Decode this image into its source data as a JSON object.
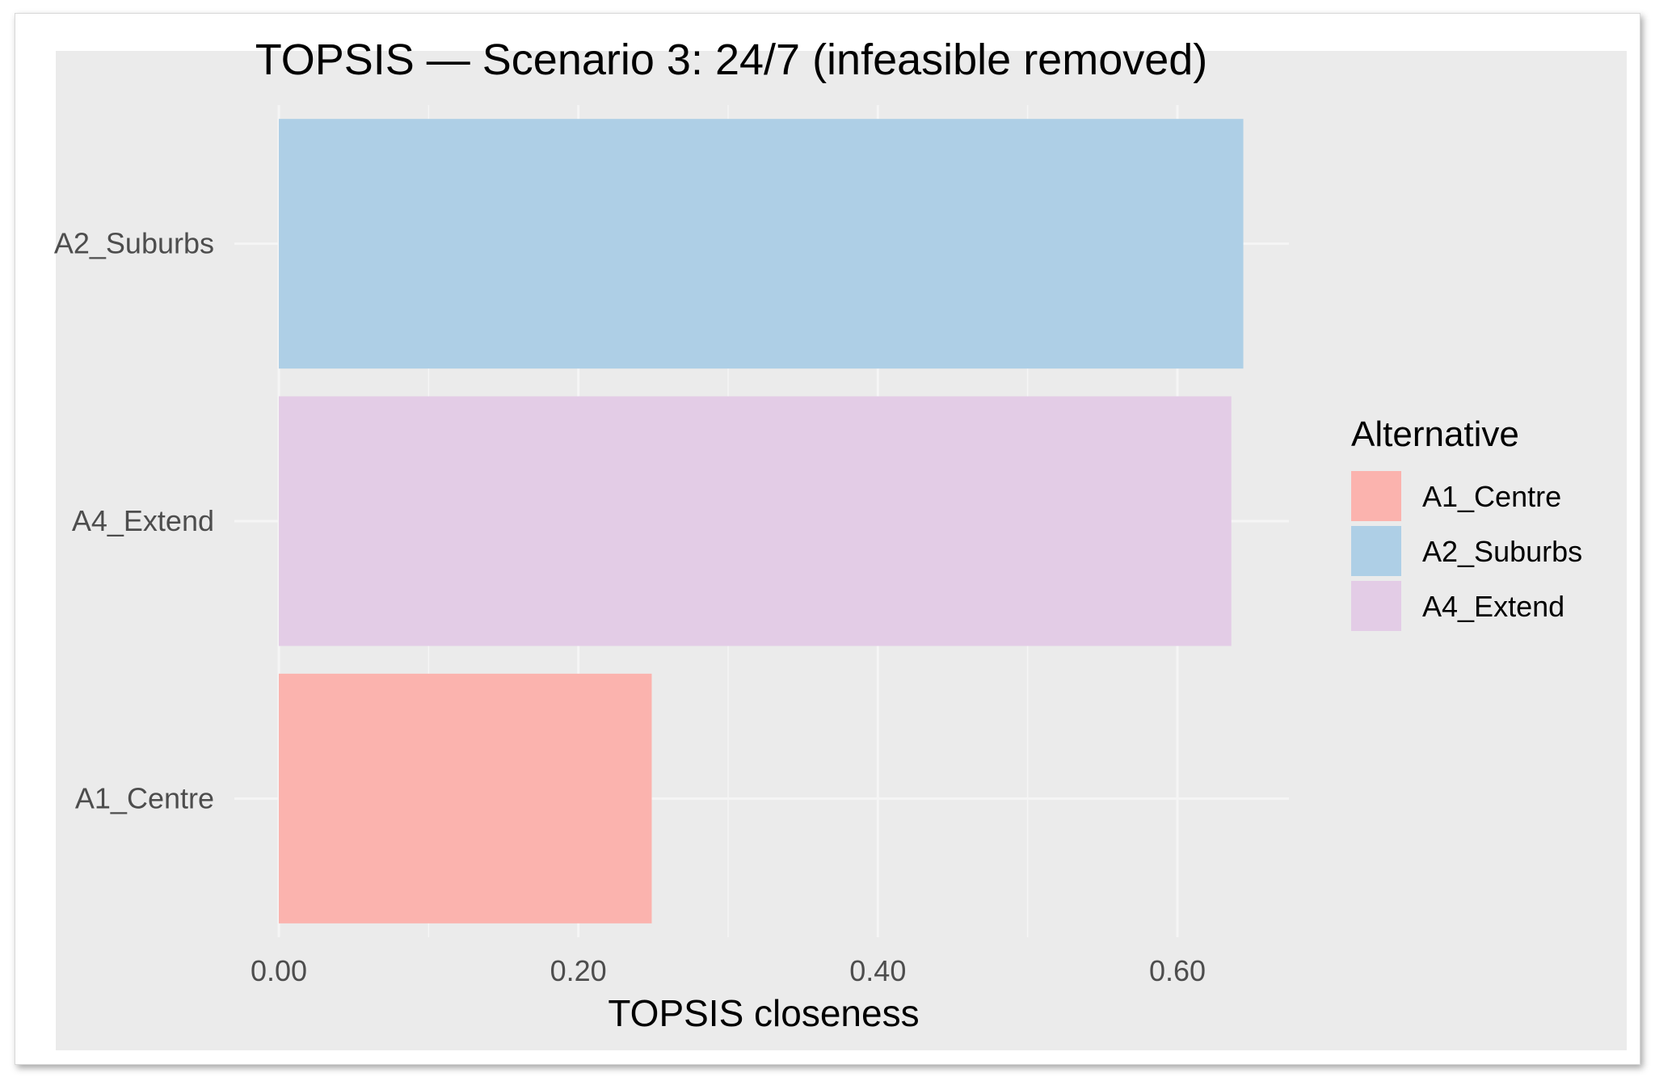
{
  "chart_data": {
    "type": "bar",
    "orientation": "horizontal",
    "title": "TOPSIS — Scenario 3: 24/7 (infeasible removed)",
    "xlabel": "TOPSIS closeness",
    "ylabel": "",
    "xlim": [
      0,
      0.675
    ],
    "x_ticks": [
      "0.00",
      "0.20",
      "0.40",
      "0.60"
    ],
    "x_tick_values": [
      0,
      0.2,
      0.4,
      0.6
    ],
    "categories": [
      "A2_Suburbs",
      "A4_Extend",
      "A1_Centre"
    ],
    "values": [
      0.644,
      0.636,
      0.249
    ],
    "colors": [
      "#aecfe6",
      "#e3cce6",
      "#fbb3ae"
    ],
    "grid": true,
    "legend": {
      "title": "Alternative",
      "position": "right",
      "items": [
        {
          "label": "A1_Centre",
          "color": "#fbb3ae"
        },
        {
          "label": "A2_Suburbs",
          "color": "#aecfe6"
        },
        {
          "label": "A4_Extend",
          "color": "#e3cce6"
        }
      ]
    },
    "panel_background": "#ebebeb",
    "grid_color": "#f5f5f5"
  }
}
